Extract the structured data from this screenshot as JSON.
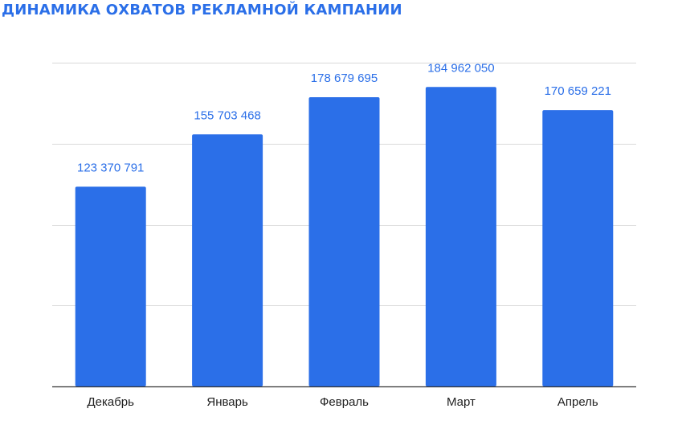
{
  "colors": {
    "title": "#2b6fe8",
    "bar": "#2b6fe8",
    "value_label": "#2b6fe8",
    "gridline": "#d9d9d9",
    "baseline": "#333333"
  },
  "chart_data": {
    "type": "bar",
    "title": "ДИНАМИКА ОХВАТОВ РЕКЛАМНОЙ КАМПАНИИ",
    "xlabel": "",
    "ylabel": "",
    "categories": [
      "Декабрь",
      "Январь",
      "Февраль",
      "Март",
      "Апрель"
    ],
    "values": [
      123370791,
      155703468,
      178679695,
      184962050,
      170659221
    ],
    "value_labels": [
      "123 370 791",
      "155 703 468",
      "178 679 695",
      "184 962 050",
      "170 659 221"
    ],
    "ylim": [
      0,
      200000000
    ],
    "gridlines": [
      0,
      50000000,
      100000000,
      150000000,
      200000000
    ],
    "grid": true,
    "y_tick_labels_shown": false,
    "legend": "none"
  }
}
